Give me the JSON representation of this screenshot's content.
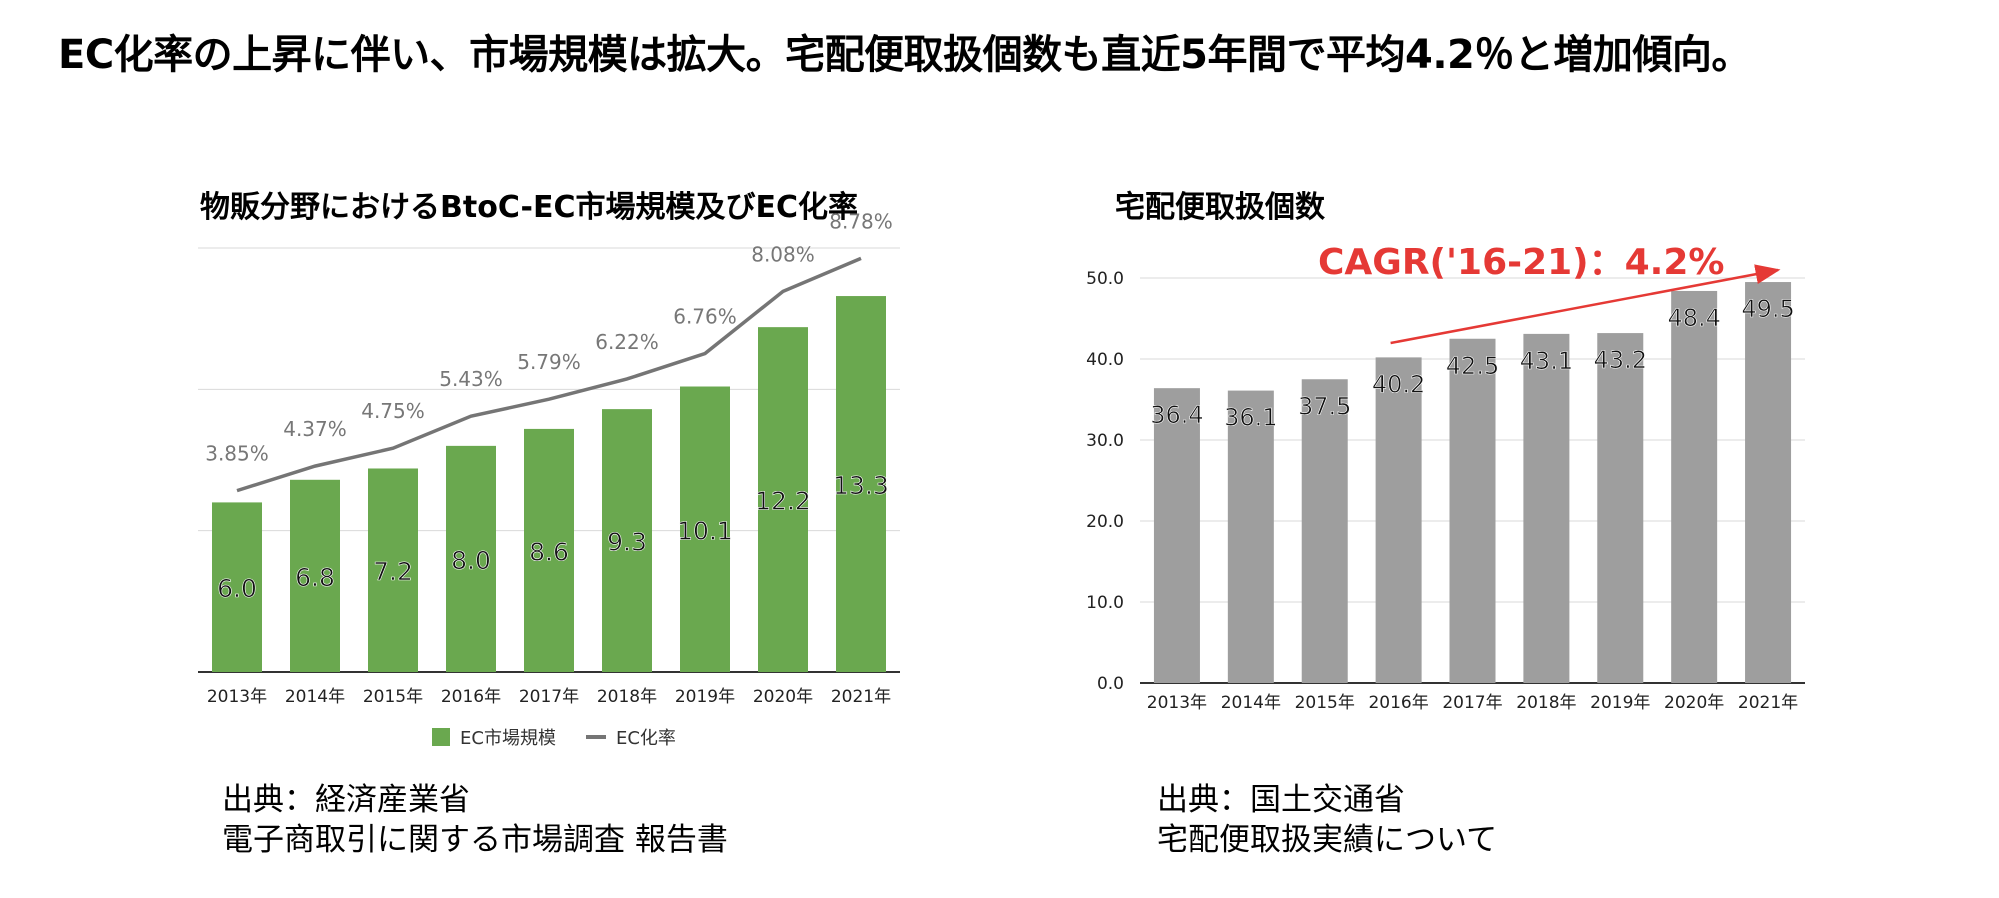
{
  "headline": "EC化率の上昇に伴い、市場規模は拡大。宅配便取扱個数も直近5年間で平均4.2％と増加傾向。",
  "cagr_label": "CAGR('16-21)：4.2%",
  "colors": {
    "ec_bar": "#6aa84f",
    "ec_line": "#757575",
    "parcel_bar": "#9e9e9e",
    "cagr_arrow": "#e53935"
  },
  "left_source": {
    "line1": "出典：経済産業省",
    "line2": "電子商取引に関する市場調査 報告書"
  },
  "right_source": {
    "line1": "出典：国土交通省",
    "line2": "宅配便取扱実績について"
  },
  "chart_data": [
    {
      "type": "bar",
      "title": "物販分野におけるBtoC-EC市場規模及びEC化率",
      "categories": [
        "2013年",
        "2014年",
        "2015年",
        "2016年",
        "2017年",
        "2018年",
        "2019年",
        "2020年",
        "2021年"
      ],
      "series": [
        {
          "name": "EC市場規模",
          "type": "bar",
          "values": [
            6.0,
            6.8,
            7.2,
            8.0,
            8.6,
            9.3,
            10.1,
            12.2,
            13.3
          ],
          "labels": [
            "6.0",
            "6.8",
            "7.2",
            "8.0",
            "8.6",
            "9.3",
            "10.1",
            "12.2",
            "13.3"
          ]
        },
        {
          "name": "EC化率",
          "type": "line",
          "values": [
            3.85,
            4.37,
            4.75,
            5.43,
            5.79,
            6.22,
            6.76,
            8.08,
            8.78
          ],
          "labels": [
            "3.85%",
            "4.37%",
            "4.75%",
            "5.43%",
            "5.79%",
            "6.22%",
            "6.76%",
            "8.08%",
            "8.78%"
          ]
        }
      ],
      "ylim_bar": [
        0,
        15
      ],
      "ylim_line": [
        0,
        9
      ],
      "grid": true,
      "legend": "bottom"
    },
    {
      "type": "bar",
      "title": "宅配便取扱個数",
      "categories": [
        "2013年",
        "2014年",
        "2015年",
        "2016年",
        "2017年",
        "2018年",
        "2019年",
        "2020年",
        "2021年"
      ],
      "values": [
        36.4,
        36.1,
        37.5,
        40.2,
        42.5,
        43.1,
        43.2,
        48.4,
        49.5
      ],
      "labels": [
        "36.4",
        "36.1",
        "37.5",
        "40.2",
        "42.5",
        "43.1",
        "43.2",
        "48.4",
        "49.5"
      ],
      "yticks": [
        "0.0",
        "10.0",
        "20.0",
        "30.0",
        "40.0",
        "50.0"
      ],
      "ylim": [
        0,
        50
      ],
      "grid": true
    }
  ]
}
